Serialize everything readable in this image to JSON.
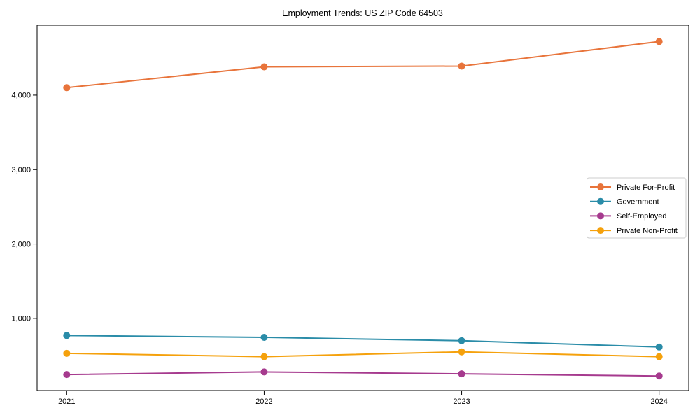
{
  "title": "Employment Trends: US ZIP Code 64503",
  "chart_data": {
    "type": "line",
    "title": "Employment Trends: US ZIP Code 64503",
    "x": [
      2021,
      2022,
      2023,
      2024
    ],
    "x_tick_labels": [
      "2021",
      "2022",
      "2023",
      "2024"
    ],
    "y_ticks": [
      1000,
      2000,
      3000,
      4000
    ],
    "y_tick_labels": [
      "1,000",
      "2,000",
      "3,000",
      "4,000"
    ],
    "xlim": [
      2020.85,
      2024.15
    ],
    "ylim": [
      30,
      4940
    ],
    "grid": false,
    "legend_position": "center-right",
    "marker": "circle",
    "series": [
      {
        "name": "Private For-Profit",
        "color": "#E8743B",
        "values": [
          4100,
          4380,
          4390,
          4720
        ]
      },
      {
        "name": "Government",
        "color": "#2A8CA8",
        "values": [
          770,
          745,
          700,
          615
        ]
      },
      {
        "name": "Self-Employed",
        "color": "#A63A8E",
        "values": [
          245,
          280,
          255,
          225
        ]
      },
      {
        "name": "Private Non-Profit",
        "color": "#F5A10C",
        "values": [
          530,
          485,
          550,
          485
        ]
      }
    ]
  }
}
